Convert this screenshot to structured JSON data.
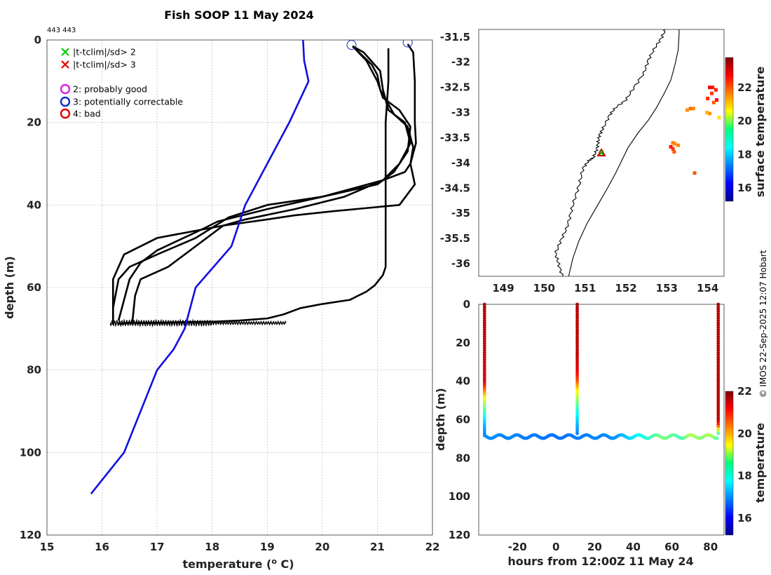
{
  "figure": {
    "title": "Fish SOOP 11 May 2024",
    "id_label": "443 443",
    "copyright": "© IMOS 22-Sep-2025 12:07 Hobart"
  },
  "chart_data": [
    {
      "name": "profile",
      "type": "line",
      "xlabel": "temperature (",
      "xlabel_sup": "o",
      "xlabel_tail": " C)",
      "ylabel": "depth (m)",
      "xlim": [
        15,
        22
      ],
      "ylim": [
        0,
        120
      ],
      "y_reversed": true,
      "xticks": [
        15,
        16,
        17,
        18,
        19,
        20,
        21,
        22
      ],
      "yticks": [
        0,
        20,
        40,
        60,
        80,
        100,
        120
      ],
      "legend": [
        {
          "marker": "x",
          "color": "#00cc00",
          "label": "|t-tclim|/sd> 2"
        },
        {
          "marker": "x",
          "color": "#e00000",
          "label": "|t-tclim|/sd> 3"
        },
        {
          "marker": "o",
          "color": "#e020e0",
          "label": "2: probably good"
        },
        {
          "marker": "o",
          "color": "#1030d0",
          "label": "3: potentially correctable"
        },
        {
          "marker": "o",
          "color": "#e00000",
          "label": "4: bad"
        }
      ],
      "climatology": {
        "color": "#1010e0",
        "points": [
          [
            19.65,
            0
          ],
          [
            19.67,
            5
          ],
          [
            19.75,
            10
          ],
          [
            19.4,
            20
          ],
          [
            19.0,
            30
          ],
          [
            18.6,
            40
          ],
          [
            18.35,
            50
          ],
          [
            17.7,
            60
          ],
          [
            17.5,
            70
          ],
          [
            17.3,
            75
          ],
          [
            17.0,
            80
          ],
          [
            16.7,
            90
          ],
          [
            16.4,
            100
          ],
          [
            15.8,
            110
          ]
        ]
      },
      "profiles": [
        {
          "color": "#000000",
          "points": [
            [
              20.55,
              1.5
            ],
            [
              20.9,
              6
            ],
            [
              21.0,
              8.5
            ],
            [
              21.05,
              12
            ],
            [
              21.3,
              18
            ],
            [
              21.55,
              21
            ],
            [
              21.65,
              26
            ],
            [
              21.6,
              30
            ],
            [
              21.5,
              32
            ],
            [
              21.1,
              34
            ],
            [
              20.4,
              38
            ],
            [
              19.5,
              41
            ],
            [
              18.6,
              43.5
            ],
            [
              18.2,
              45
            ],
            [
              17.7,
              50
            ],
            [
              17.2,
              55
            ],
            [
              16.7,
              58
            ],
            [
              16.6,
              62
            ],
            [
              16.55,
              68.5
            ]
          ]
        },
        {
          "color": "#000000",
          "points": [
            [
              20.55,
              1.5
            ],
            [
              20.75,
              3
            ],
            [
              21.05,
              7.5
            ],
            [
              21.1,
              12
            ],
            [
              21.2,
              17
            ],
            [
              21.5,
              20
            ],
            [
              21.6,
              25
            ],
            [
              21.4,
              30
            ],
            [
              21.1,
              34
            ],
            [
              20.0,
              38
            ],
            [
              19.0,
              40
            ],
            [
              18.3,
              43
            ],
            [
              18.0,
              45.5
            ],
            [
              17.7,
              48
            ],
            [
              17.0,
              52
            ],
            [
              16.5,
              55
            ],
            [
              16.3,
              58
            ],
            [
              16.2,
              65
            ],
            [
              16.2,
              69
            ]
          ]
        },
        {
          "color": "#000000",
          "points": [
            [
              20.55,
              1.5
            ],
            [
              20.8,
              5
            ],
            [
              21.0,
              10
            ],
            [
              21.1,
              14
            ],
            [
              21.4,
              17
            ],
            [
              21.6,
              21
            ],
            [
              21.55,
              27
            ],
            [
              21.3,
              32
            ],
            [
              21.0,
              35
            ],
            [
              20.0,
              38
            ],
            [
              19.0,
              41
            ],
            [
              18.1,
              44
            ],
            [
              17.8,
              46
            ],
            [
              17.0,
              51
            ],
            [
              16.7,
              54
            ],
            [
              16.5,
              58
            ],
            [
              16.4,
              63
            ],
            [
              16.3,
              68
            ]
          ]
        },
        {
          "color": "#000000",
          "points": [
            [
              21.2,
              2
            ],
            [
              21.2,
              10
            ],
            [
              21.15,
              20
            ],
            [
              21.15,
              40
            ],
            [
              21.15,
              50
            ],
            [
              21.15,
              55
            ],
            [
              21.1,
              57
            ],
            [
              20.95,
              59.5
            ],
            [
              20.8,
              61
            ],
            [
              20.5,
              63
            ],
            [
              20.0,
              64
            ],
            [
              19.6,
              65
            ],
            [
              19.3,
              66.5
            ],
            [
              19.0,
              67.5
            ],
            [
              18.5,
              68
            ],
            [
              18.0,
              68.3
            ],
            [
              17.5,
              68.4
            ],
            [
              17.0,
              68.6
            ],
            [
              16.5,
              68.6
            ],
            [
              16.3,
              68.8
            ]
          ]
        },
        {
          "color": "#000000",
          "points": [
            [
              21.55,
              1
            ],
            [
              21.65,
              3
            ],
            [
              21.68,
              10
            ],
            [
              21.68,
              20
            ],
            [
              21.7,
              25
            ],
            [
              21.6,
              30
            ],
            [
              21.68,
              35
            ],
            [
              21.4,
              40
            ],
            [
              20.2,
              41.5
            ],
            [
              19.5,
              42.5
            ],
            [
              19.0,
              43.5
            ],
            [
              18.2,
              45
            ],
            [
              17.0,
              48
            ],
            [
              16.4,
              52
            ],
            [
              16.2,
              58
            ],
            [
              16.2,
              69
            ]
          ]
        }
      ],
      "dense_band": {
        "x_min": 16.15,
        "x_max": 19.35,
        "y_center": 68.6,
        "y_spread": 1.0
      },
      "flag_circles": [
        {
          "x": 20.53,
          "y": 1.2,
          "flag": 3
        },
        {
          "x": 21.55,
          "y": 0.6,
          "flag": 3
        }
      ]
    },
    {
      "name": "map",
      "type": "scatter",
      "xlim": [
        148.4,
        154.4
      ],
      "ylim": [
        -36.25,
        -31.35
      ],
      "xticks": [
        149,
        150,
        151,
        152,
        153,
        154
      ],
      "yticks": [
        -31.5,
        -32,
        -32.5,
        -33,
        -33.5,
        -34,
        -34.5,
        -35,
        -35.5,
        -36
      ],
      "coastline": [
        [
          150.45,
          -36.25
        ],
        [
          150.35,
          -36.0
        ],
        [
          150.28,
          -35.8
        ],
        [
          150.4,
          -35.55
        ],
        [
          150.55,
          -35.3
        ],
        [
          150.65,
          -35.0
        ],
        [
          150.75,
          -34.7
        ],
        [
          150.87,
          -34.4
        ],
        [
          150.95,
          -34.1
        ],
        [
          151.1,
          -33.95
        ],
        [
          151.2,
          -33.9
        ],
        [
          151.28,
          -33.75
        ],
        [
          151.32,
          -33.6
        ],
        [
          151.35,
          -33.45
        ],
        [
          151.45,
          -33.3
        ],
        [
          151.6,
          -33.05
        ],
        [
          151.75,
          -32.9
        ],
        [
          152.0,
          -32.75
        ],
        [
          152.2,
          -32.5
        ],
        [
          152.45,
          -32.2
        ],
        [
          152.55,
          -31.95
        ],
        [
          152.72,
          -31.7
        ],
        [
          152.88,
          -31.5
        ],
        [
          153.0,
          -31.3
        ]
      ],
      "shelf_edge": [
        [
          150.6,
          -36.25
        ],
        [
          150.7,
          -35.9
        ],
        [
          150.85,
          -35.55
        ],
        [
          151.05,
          -35.2
        ],
        [
          151.3,
          -34.85
        ],
        [
          151.55,
          -34.5
        ],
        [
          151.75,
          -34.2
        ],
        [
          151.9,
          -33.95
        ],
        [
          152.05,
          -33.7
        ],
        [
          152.3,
          -33.4
        ],
        [
          152.55,
          -33.15
        ],
        [
          152.75,
          -32.9
        ],
        [
          152.95,
          -32.6
        ],
        [
          153.1,
          -32.35
        ],
        [
          153.2,
          -32.05
        ],
        [
          153.28,
          -31.75
        ],
        [
          153.3,
          -31.45
        ],
        [
          153.3,
          -31.3
        ]
      ],
      "sst_pixels": [
        {
          "lon": 154.05,
          "lat": -32.5,
          "t": 22.8
        },
        {
          "lon": 154.12,
          "lat": -32.5,
          "t": 22.6
        },
        {
          "lon": 154.2,
          "lat": -32.55,
          "t": 22.5
        },
        {
          "lon": 154.1,
          "lat": -32.62,
          "t": 22.3
        },
        {
          "lon": 154.0,
          "lat": -32.72,
          "t": 22.4
        },
        {
          "lon": 154.22,
          "lat": -32.75,
          "t": 22.7
        },
        {
          "lon": 154.15,
          "lat": -32.8,
          "t": 22.0
        },
        {
          "lon": 153.5,
          "lat": -32.95,
          "t": 21.5
        },
        {
          "lon": 153.58,
          "lat": -32.92,
          "t": 21.8
        },
        {
          "lon": 153.65,
          "lat": -32.92,
          "t": 21.6
        },
        {
          "lon": 153.98,
          "lat": -33.0,
          "t": 21.2
        },
        {
          "lon": 154.05,
          "lat": -33.02,
          "t": 21.5
        },
        {
          "lon": 154.28,
          "lat": -33.1,
          "t": 20.8
        },
        {
          "lon": 153.15,
          "lat": -33.6,
          "t": 21.7
        },
        {
          "lon": 153.2,
          "lat": -33.62,
          "t": 21.5
        },
        {
          "lon": 153.28,
          "lat": -33.65,
          "t": 21.6
        },
        {
          "lon": 153.1,
          "lat": -33.68,
          "t": 22.6
        },
        {
          "lon": 153.15,
          "lat": -33.72,
          "t": 22.3
        },
        {
          "lon": 153.18,
          "lat": -33.78,
          "t": 22.0
        },
        {
          "lon": 153.68,
          "lat": -34.2,
          "t": 22.0
        }
      ],
      "station": {
        "lon": 151.4,
        "lat": -33.8
      },
      "colorbar": {
        "label": "surface temperature",
        "cmin": 15.2,
        "cmax": 23.8,
        "ticks": [
          16,
          18,
          20,
          22
        ]
      }
    },
    {
      "name": "timeseries",
      "type": "scatter",
      "xlabel": "hours from 12:00Z 11 May 24",
      "ylabel": "depth (m)",
      "xlim": [
        -40,
        87
      ],
      "ylim": [
        0,
        120
      ],
      "y_reversed": true,
      "xticks": [
        -20,
        0,
        20,
        40,
        60,
        80
      ],
      "yticks": [
        0,
        20,
        40,
        60,
        80,
        100,
        120
      ],
      "casts": [
        {
          "hour": -37,
          "temps": [
            [
              0,
              21.6
            ],
            [
              40,
              21.4
            ],
            [
              44,
              20.6
            ],
            [
              48,
              19.6
            ],
            [
              52,
              18.8
            ],
            [
              56,
              18.2
            ],
            [
              60,
              17.6
            ],
            [
              64,
              17.2
            ],
            [
              68,
              16.9
            ]
          ]
        },
        {
          "hour": 11,
          "temps": [
            [
              0,
              21.6
            ],
            [
              25,
              21.6
            ],
            [
              35,
              21.3
            ],
            [
              40,
              20.6
            ],
            [
              45,
              19.5
            ],
            [
              50,
              18.7
            ],
            [
              55,
              18.0
            ],
            [
              60,
              17.5
            ],
            [
              65,
              17.1
            ],
            [
              68,
              16.9
            ]
          ]
        },
        {
          "hour": 84,
          "temps": [
            [
              0,
              21.6
            ],
            [
              60,
              21.6
            ],
            [
              63,
              20.8
            ],
            [
              66,
              19.0
            ],
            [
              68,
              18.0
            ]
          ]
        }
      ],
      "tow": {
        "h_start": -37,
        "h_end": 84,
        "base_depth": 68.8,
        "amplitude": 0.9,
        "period": 9,
        "temps": [
          [
            -37,
            17.0
          ],
          [
            0,
            16.8
          ],
          [
            30,
            17.0
          ],
          [
            45,
            17.9
          ],
          [
            55,
            18.6
          ],
          [
            65,
            18.2
          ],
          [
            70,
            19.0
          ],
          [
            75,
            18.6
          ],
          [
            80,
            19.0
          ],
          [
            84,
            18.2
          ]
        ]
      },
      "colorbar": {
        "label": "temperature",
        "cmin": 15.2,
        "cmax": 22.0,
        "ticks": [
          16,
          18,
          20,
          22
        ]
      }
    }
  ]
}
